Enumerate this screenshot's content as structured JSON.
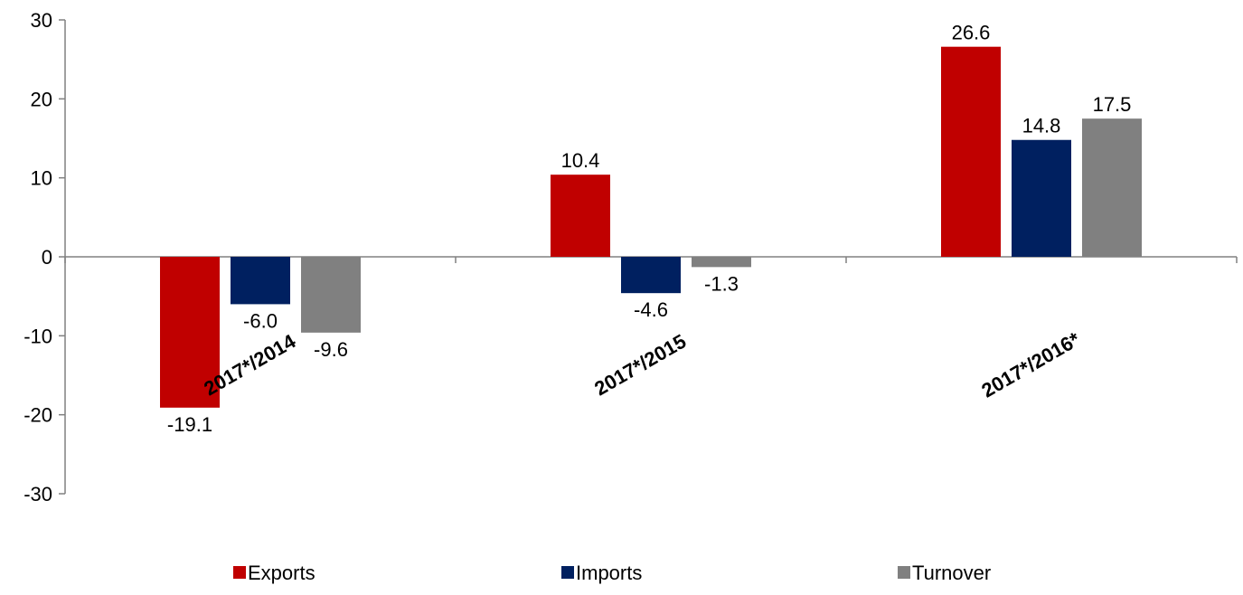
{
  "chart_data": {
    "type": "bar",
    "title": "",
    "xlabel": "",
    "ylabel": "",
    "categories": [
      "2017*/2014",
      "2017*/2015",
      "2017*/2016*"
    ],
    "series": [
      {
        "name": "Exports",
        "color": "#c00000",
        "values": [
          -19.1,
          10.4,
          26.6
        ]
      },
      {
        "name": "Imports",
        "color": "#002060",
        "values": [
          -6.0,
          -4.6,
          14.8
        ]
      },
      {
        "name": "Turnover",
        "color": "#808080",
        "values": [
          -9.6,
          -1.3,
          17.5
        ]
      }
    ],
    "ylim": [
      -30,
      30
    ],
    "yticks": [
      30,
      20,
      10,
      0,
      -10,
      -20,
      -30
    ],
    "grid": false,
    "legend": "bottom"
  }
}
